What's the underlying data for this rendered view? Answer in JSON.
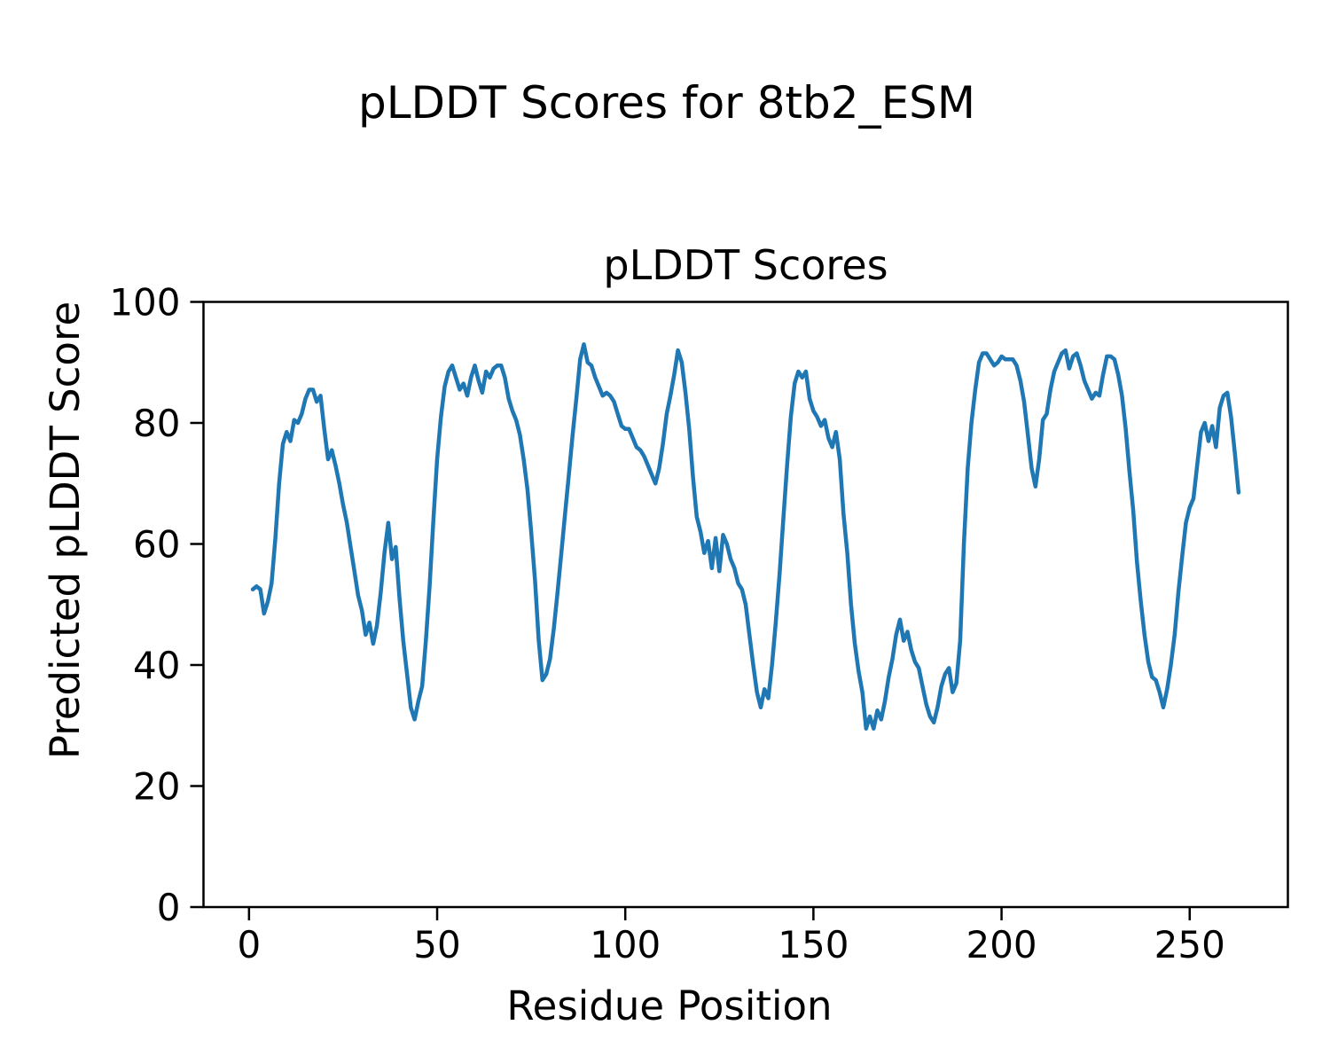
{
  "figure": {
    "suptitle": "pLDDT Scores for 8tb2_ESM",
    "background_color": "#ffffff",
    "text_color": "#000000"
  },
  "axes": {
    "title": "pLDDT Scores",
    "xlabel": "Residue Position",
    "ylabel": "Predicted pLDDT Score",
    "frame_color": "#000000",
    "x_tick_labels": [
      "0",
      "50",
      "100",
      "150",
      "200",
      "250"
    ],
    "y_tick_labels": [
      "0",
      "20",
      "40",
      "60",
      "80",
      "100"
    ]
  },
  "chart_data": {
    "type": "line",
    "title": "pLDDT Scores",
    "suptitle": "pLDDT Scores for 8tb2_ESM",
    "xlabel": "Residue Position",
    "ylabel": "Predicted pLDDT Score",
    "x_ticks": [
      0,
      50,
      100,
      150,
      200,
      250
    ],
    "y_ticks": [
      0,
      20,
      40,
      60,
      80,
      100
    ],
    "xlim": [
      -12.1,
      276.1
    ],
    "ylim": [
      0,
      100
    ],
    "grid": false,
    "legend_position": "none",
    "line_color": "#1f77b4",
    "line_width": 4.5,
    "series": [
      {
        "name": "pLDDT",
        "x_start": 1,
        "x_step": 1,
        "values": [
          52.5,
          53,
          52.5,
          48.5,
          50.5,
          53.5,
          61,
          70,
          76.5,
          78.5,
          77,
          80.5,
          80,
          81.5,
          84,
          85.5,
          85.5,
          83.5,
          84.5,
          79,
          74,
          75.5,
          73,
          70,
          66.5,
          63.5,
          59.5,
          55.5,
          51.5,
          49,
          45,
          47,
          43.5,
          46.5,
          52,
          58.5,
          63.5,
          57.5,
          59.5,
          51,
          44,
          38.5,
          33,
          31,
          34,
          36.5,
          44,
          53,
          64,
          74,
          81,
          86,
          88.5,
          89.5,
          87.5,
          85.5,
          86.5,
          84.5,
          87.5,
          89.5,
          87,
          85,
          88.5,
          87.5,
          89,
          89.5,
          89.5,
          87.5,
          84,
          82,
          80.5,
          78,
          74,
          69,
          62,
          54,
          44,
          37.5,
          38.5,
          41,
          46,
          52,
          58.5,
          65,
          71.5,
          78,
          84,
          90.5,
          93,
          90,
          89.5,
          87.5,
          86,
          84.5,
          85,
          84.5,
          83.5,
          81.5,
          79.5,
          79,
          79,
          77.5,
          76,
          75.5,
          74.5,
          73,
          71.5,
          70,
          72.5,
          76.5,
          81.5,
          84.5,
          88,
          92,
          90,
          85,
          79,
          71,
          64.5,
          62,
          58.5,
          60.5,
          56,
          61,
          55.5,
          61.5,
          60,
          57.5,
          56,
          53.5,
          52.5,
          50,
          45,
          40,
          35.5,
          33,
          36,
          34.5,
          40,
          47,
          55,
          64,
          73,
          81,
          86.5,
          88.5,
          87.5,
          88.5,
          84,
          82,
          81,
          79.5,
          80.5,
          77.5,
          76,
          78.5,
          74,
          65,
          58.5,
          50,
          43.5,
          39,
          35.5,
          29.5,
          31.5,
          29.5,
          32.5,
          31,
          34,
          38,
          41,
          45,
          47.5,
          44,
          45.5,
          42.5,
          40.5,
          39.5,
          36.5,
          33.5,
          31.5,
          30.5,
          33,
          36.5,
          38.5,
          39.5,
          35.5,
          37,
          44,
          60,
          72.5,
          80,
          85.5,
          90,
          91.5,
          91.5,
          90.5,
          89.5,
          90,
          91,
          90.5,
          90.5,
          90.5,
          89.5,
          87,
          83.5,
          78,
          72.5,
          69.5,
          74,
          80.5,
          81.5,
          85.5,
          88.5,
          90,
          91.5,
          92,
          89,
          91,
          91.5,
          89.5,
          87,
          85.5,
          84,
          85,
          84.5,
          88,
          91,
          91,
          90.5,
          88,
          84.5,
          79,
          72,
          65.5,
          57,
          50.5,
          45,
          40.5,
          38,
          37.5,
          35.5,
          33,
          36,
          40,
          45,
          52,
          58,
          63.5,
          66,
          67.5,
          73,
          78.5,
          80,
          77,
          79.5,
          76,
          82.5,
          84.5,
          85,
          81,
          75,
          68.5
        ]
      }
    ]
  }
}
